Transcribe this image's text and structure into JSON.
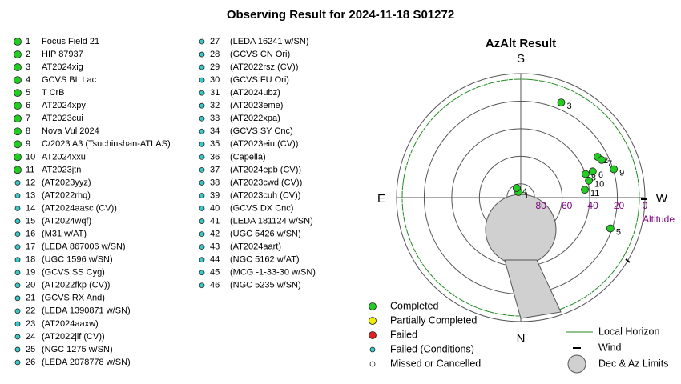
{
  "title": "Observing Result for 2024-11-18 S01272",
  "targets": [
    {
      "number": 1,
      "name": "Focus Field 21",
      "color": "#22cc22"
    },
    {
      "number": 2,
      "name": "HIP 87937",
      "color": "#22cc22"
    },
    {
      "number": 3,
      "name": "AT2024xig",
      "color": "#22cc22"
    },
    {
      "number": 4,
      "name": "GCVS BL Lac",
      "color": "#22cc22"
    },
    {
      "number": 5,
      "name": "T CrB",
      "color": "#22cc22"
    },
    {
      "number": 6,
      "name": "AT2024xpy",
      "color": "#22cc22"
    },
    {
      "number": 7,
      "name": "AT2023cui",
      "color": "#22cc22"
    },
    {
      "number": 8,
      "name": "Nova Vul 2024",
      "color": "#22cc22"
    },
    {
      "number": 9,
      "name": "C/2023 A3 (Tsuchinshan-ATLAS)",
      "color": "#22cc22"
    },
    {
      "number": 10,
      "name": "AT2024xxu",
      "color": "#22cc22"
    },
    {
      "number": 11,
      "name": "AT2023jtn",
      "color": "#22cc22"
    },
    {
      "number": 12,
      "name": "(AT2023yyz)",
      "color": "#33cccc"
    },
    {
      "number": 13,
      "name": "(AT2022rhq)",
      "color": "#33cccc"
    },
    {
      "number": 14,
      "name": "(AT2024aasc (CV))",
      "color": "#33cccc"
    },
    {
      "number": 15,
      "name": "(AT2024wqf)",
      "color": "#33cccc"
    },
    {
      "number": 16,
      "name": "(M31 w/AT)",
      "color": "#33cccc"
    },
    {
      "number": 17,
      "name": "(LEDA 867006 w/SN)",
      "color": "#33cccc"
    },
    {
      "number": 18,
      "name": "(UGC 1596 w/SN)",
      "color": "#33cccc"
    },
    {
      "number": 19,
      "name": "(GCVS SS Cyg)",
      "color": "#33cccc"
    },
    {
      "number": 20,
      "name": "(AT2022fkp (CV))",
      "color": "#33cccc"
    },
    {
      "number": 21,
      "name": "(GCVS RX And)",
      "color": "#33cccc"
    },
    {
      "number": 22,
      "name": "(LEDA 1390871 w/SN)",
      "color": "#33cccc"
    },
    {
      "number": 23,
      "name": "(AT2024aaxw)",
      "color": "#33cccc"
    },
    {
      "number": 24,
      "name": "(AT2022jlf (CV))",
      "color": "#33cccc"
    },
    {
      "number": 25,
      "name": "(NGC 1275 w/SN)",
      "color": "#33cccc"
    },
    {
      "number": 26,
      "name": "(LEDA 2078778 w/SN)",
      "color": "#33cccc"
    },
    {
      "number": 27,
      "name": "(LEDA 16241 w/SN)",
      "color": "#33cccc"
    },
    {
      "number": 28,
      "name": "(GCVS CN Ori)",
      "color": "#33cccc"
    },
    {
      "number": 29,
      "name": "(AT2022rsz (CV))",
      "color": "#33cccc"
    },
    {
      "number": 30,
      "name": "(GCVS FU Ori)",
      "color": "#33cccc"
    },
    {
      "number": 31,
      "name": "(AT2024ubz)",
      "color": "#33cccc"
    },
    {
      "number": 32,
      "name": "(AT2023eme)",
      "color": "#33cccc"
    },
    {
      "number": 33,
      "name": "(AT2022xpa)",
      "color": "#33cccc"
    },
    {
      "number": 34,
      "name": "(GCVS SY Cnc)",
      "color": "#33cccc"
    },
    {
      "number": 35,
      "name": "(AT2023eiu (CV))",
      "color": "#33cccc"
    },
    {
      "number": 36,
      "name": "(Capella)",
      "color": "#33cccc"
    },
    {
      "number": 37,
      "name": "(AT2024epb (CV))",
      "color": "#33cccc"
    },
    {
      "number": 38,
      "name": "(AT2023cwd (CV))",
      "color": "#33cccc"
    },
    {
      "number": 39,
      "name": "(AT2023cuh (CV))",
      "color": "#33cccc"
    },
    {
      "number": 40,
      "name": "(GCVS DX Cnc)",
      "color": "#33cccc"
    },
    {
      "number": 41,
      "name": "(LEDA 181124 w/SN)",
      "color": "#33cccc"
    },
    {
      "number": 42,
      "name": "(UGC 5426 w/SN)",
      "color": "#33cccc"
    },
    {
      "number": 43,
      "name": "(AT2024aart)",
      "color": "#33cccc"
    },
    {
      "number": 44,
      "name": "(NGC 5162 w/AT)",
      "color": "#33cccc"
    },
    {
      "number": 45,
      "name": "(MCG -1-33-30 w/SN)",
      "color": "#33cccc"
    },
    {
      "number": 46,
      "name": "(NGC 5235 w/SN)",
      "color": "#33cccc"
    }
  ],
  "chart_data": {
    "type": "polar",
    "title": "AzAlt Result",
    "directions": [
      "S",
      "E",
      "W",
      "N"
    ],
    "axis_label": "Altitude",
    "ylim": [
      90,
      0
    ],
    "yticks": [
      80,
      60,
      40,
      20,
      0
    ],
    "point_color": "#22cc22",
    "points": [
      {
        "label": "1",
        "az": 157,
        "alt": 85.6
      },
      {
        "label": "2",
        "az": 242,
        "alt": 26.9
      },
      {
        "label": "3",
        "az": 203,
        "alt": 15
      },
      {
        "label": "4",
        "az": 157,
        "alt": 82.4
      },
      {
        "label": "5",
        "az": 289,
        "alt": 21.3
      },
      {
        "label": "6",
        "az": 250,
        "alt": 34.5
      },
      {
        "label": "7",
        "az": 245,
        "alt": 25.3
      },
      {
        "label": "8",
        "az": 250,
        "alt": 40
      },
      {
        "label": "9",
        "az": 253,
        "alt": 19.5
      },
      {
        "label": "10",
        "az": 256,
        "alt": 39.1
      },
      {
        "label": "11",
        "az": 263,
        "alt": 43.2
      }
    ],
    "legend": [
      {
        "name": "Completed",
        "color": "#22cc22"
      },
      {
        "name": "Partially Completed",
        "color": "#eeee00"
      },
      {
        "name": "Failed",
        "color": "#dd2222"
      },
      {
        "name": "Failed (Conditions)",
        "color": "#33cccc"
      },
      {
        "name": "Missed or Cancelled",
        "color": "#ffffff"
      },
      {
        "name": "Local Horizon",
        "color": "#228b22"
      },
      {
        "name": "Wind",
        "color": "#000000"
      },
      {
        "name": "Dec & Az Limits",
        "color": "#d0d0d0"
      }
    ]
  }
}
